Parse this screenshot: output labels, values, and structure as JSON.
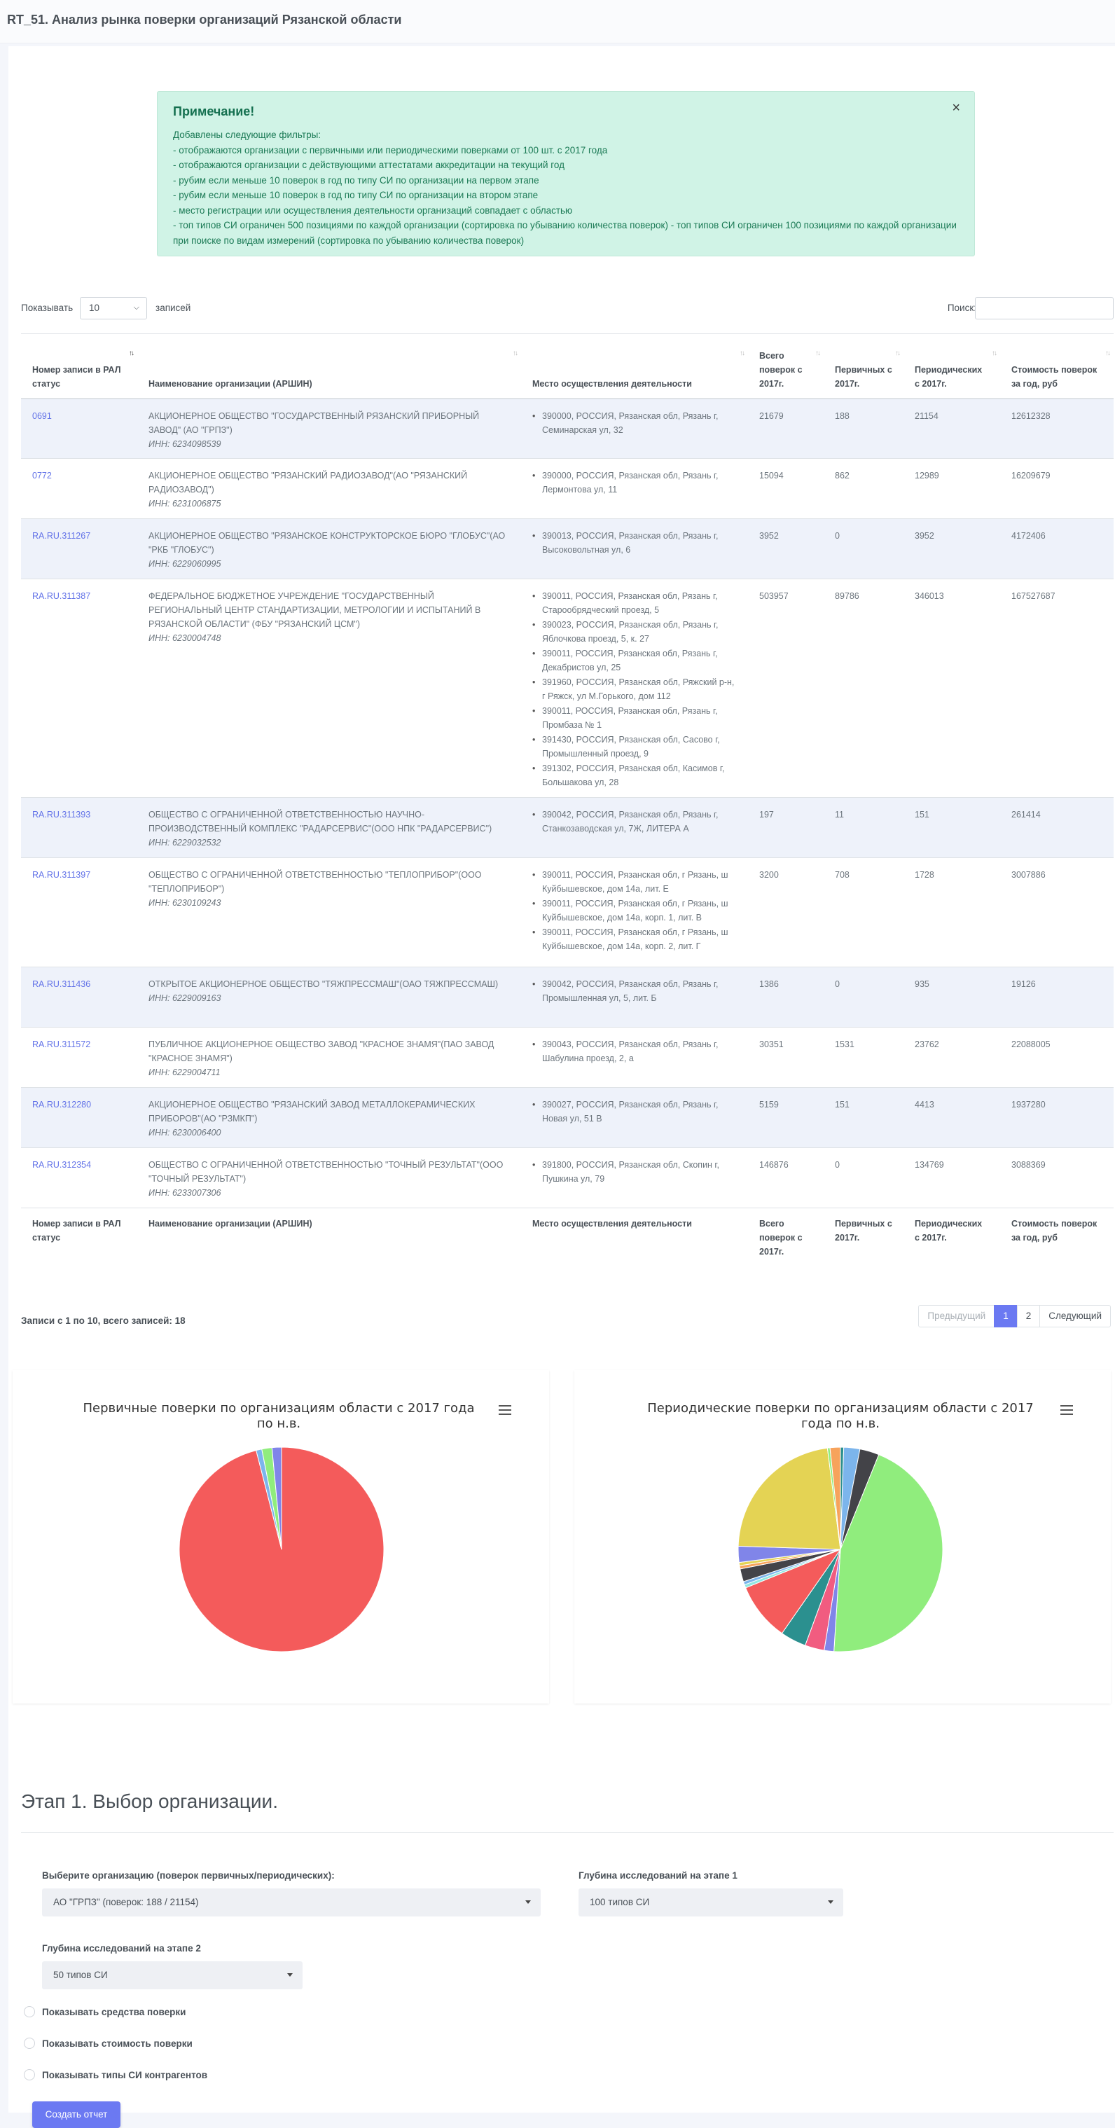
{
  "page_title": "RT_51. Анализ рынка поверки организаций Рязанской области",
  "note": {
    "title": "Примечание!",
    "close": "×",
    "lines": [
      "Добавлены следующие фильтры:",
      "- отображаются организации с первичными или периодическими поверками от 100 шт. с 2017 года",
      "- отображаются организации с действующими аттестатами аккредитации на текущий год",
      "- рубим если меньше 10 поверок в год по типу СИ по организации на первом этапе",
      "- рубим если меньше 10 поверок в год по типу СИ по организации на втором этапе",
      "- место регистрации или осуществления деятельности организаций совпадает с областью",
      "- топ типов СИ ограничен 500 позициями по каждой организации (сортировка по убыванию количества поверок) - топ типов СИ ограничен 100 позициями по каждой организации при поиске по видам измерений (сортировка по убыванию количества поверок)"
    ]
  },
  "table_controls": {
    "show_label": "Показывать",
    "page_length": "10",
    "records_label": "записей",
    "search_label": "Поиск:"
  },
  "columns": [
    "Номер записи в РАЛ статус",
    "Наименование организации (АРШИН)",
    "Место осуществления деятельности",
    "Всего поверок с 2017г.",
    "Первичных с 2017г.",
    "Периодических с 2017г.",
    "Стоимость поверок за год, руб"
  ],
  "footer_columns": [
    "Номер записи в РАЛ статус",
    "Наименование организации (АРШИН)",
    "Место осуществления деятельности",
    "Всего поверок с 2017г.",
    "Первичных с 2017г.",
    "Периодических с 2017г.",
    "Стоимость поверок за год, руб"
  ],
  "rows": [
    {
      "id": "0691",
      "name": "АКЦИОНЕРНОЕ ОБЩЕСТВО \"ГОСУДАРСТВЕННЫЙ РЯЗАНСКИЙ ПРИБОРНЫЙ ЗАВОД\" (АО \"ГРПЗ\")",
      "inn": "ИНН: 6234098539",
      "addresses": [
        "390000, РОССИЯ, Рязанская обл, Рязань г, Семинарская ул, 32"
      ],
      "total": "21679",
      "primary": "188",
      "periodic": "21154",
      "cost": "12612328"
    },
    {
      "id": "0772",
      "name": "АКЦИОНЕРНОЕ ОБЩЕСТВО \"РЯЗАНСКИЙ РАДИОЗАВОД\"(АО \"РЯЗАНСКИЙ РАДИОЗАВОД\")",
      "inn": "ИНН: 6231006875",
      "addresses": [
        "390000, РОССИЯ, Рязанская обл, Рязань г, Лермонтова ул, 11"
      ],
      "total": "15094",
      "primary": "862",
      "periodic": "12989",
      "cost": "16209679"
    },
    {
      "id": "RA.RU.311267",
      "name": "АКЦИОНЕРНОЕ ОБЩЕСТВО \"РЯЗАНСКОЕ КОНСТРУКТОРСКОЕ БЮРО \"ГЛОБУС\"(АО \"РКБ \"ГЛОБУС\")",
      "inn": "ИНН: 6229060995",
      "addresses": [
        "390013, РОССИЯ, Рязанская обл, Рязань г, Высоковольтная ул, 6"
      ],
      "total": "3952",
      "primary": "0",
      "periodic": "3952",
      "cost": "4172406"
    },
    {
      "id": "RA.RU.311387",
      "name": "ФЕДЕРАЛЬНОЕ БЮДЖЕТНОЕ УЧРЕЖДЕНИЕ \"ГОСУДАРСТВЕННЫЙ РЕГИОНАЛЬНЫЙ ЦЕНТР СТАНДАРТИЗАЦИИ, МЕТРОЛОГИИ И ИСПЫТАНИЙ В РЯЗАНСКОЙ ОБЛАСТИ\" (ФБУ \"РЯЗАНСКИЙ ЦСМ\")",
      "inn": "ИНН: 6230004748",
      "addresses": [
        "390011, РОССИЯ, Рязанская обл, Рязань г, Старообрядческий проезд, 5",
        "390023, РОССИЯ, Рязанская обл, Рязань г, Яблочкова проезд, 5, к. 27",
        "390011, РОССИЯ, Рязанская обл, Рязань г, Декабристов ул, 25",
        "391960, РОССИЯ, Рязанская обл, Ряжский р-н, г Ряжск, ул М.Горького, дом 112",
        "390011, РОССИЯ, Рязанская обл, Рязань г, Промбаза № 1",
        "391430, РОССИЯ, Рязанская обл, Сасово г, Промышленный проезд, 9",
        "391302, РОССИЯ, Рязанская обл, Касимов г, Большакова ул, 28"
      ],
      "total": "503957",
      "primary": "89786",
      "periodic": "346013",
      "cost": "167527687"
    },
    {
      "id": "RA.RU.311393",
      "name": "ОБЩЕСТВО С ОГРАНИЧЕННОЙ ОТВЕТСТВЕННОСТЬЮ НАУЧНО-ПРОИЗВОДСТВЕННЫЙ КОМПЛЕКС \"РАДАРСЕРВИС\"(ООО НПК \"РАДАРСЕРВИС\")",
      "inn": "ИНН: 6229032532",
      "addresses": [
        "390042, РОССИЯ, Рязанская обл, Рязань г, Станкозаводская ул, 7Ж, ЛИТЕРА А"
      ],
      "total": "197",
      "primary": "11",
      "periodic": "151",
      "cost": "261414"
    },
    {
      "id": "RA.RU.311397",
      "name": "ОБЩЕСТВО С ОГРАНИЧЕННОЙ ОТВЕТСТВЕННОСТЬЮ \"ТЕПЛОПРИБОР\"(ООО \"ТЕПЛОПРИБОР\")",
      "inn": "ИНН: 6230109243",
      "addresses": [
        "390011, РОССИЯ, Рязанская обл, г Рязань, ш Куйбышевское, дом 14а, лит. Е",
        "390011, РОССИЯ, Рязанская обл, г Рязань, ш Куйбышевское, дом 14а, корп. 1, лит. В",
        "390011, РОССИЯ, Рязанская обл, г Рязань, ш Куйбышевское, дом 14а, корп. 2, лит. Г"
      ],
      "total": "3200",
      "primary": "708",
      "periodic": "1728",
      "cost": "3007886"
    },
    {
      "id": "RA.RU.311436",
      "name": "ОТКРЫТОЕ АКЦИОНЕРНОЕ ОБЩЕСТВО \"ТЯЖПРЕССМАШ\"(ОАО ТЯЖПРЕССМАШ)",
      "inn": "ИНН: 6229009163",
      "addresses": [
        "390042, РОССИЯ, Рязанская обл, Рязань г, Промышленная ул, 5, лит. Б"
      ],
      "total": "1386",
      "primary": "0",
      "periodic": "935",
      "cost": "19126"
    },
    {
      "id": "RA.RU.311572",
      "name": "ПУБЛИЧНОЕ АКЦИОНЕРНОЕ ОБЩЕСТВО ЗАВОД \"КРАСНОЕ ЗНАМЯ\"(ПАО ЗАВОД \"КРАСНОЕ ЗНАМЯ\")",
      "inn": "ИНН: 6229004711",
      "addresses": [
        "390043, РОССИЯ, Рязанская обл, Рязань г, Шабулина проезд, 2, а"
      ],
      "total": "30351",
      "primary": "1531",
      "periodic": "23762",
      "cost": "22088005"
    },
    {
      "id": "RA.RU.312280",
      "name": "АКЦИОНЕРНОЕ ОБЩЕСТВО \"РЯЗАНСКИЙ ЗАВОД МЕТАЛЛОКЕРАМИЧЕСКИХ ПРИБОРОВ\"(АО \"РЗМКП\")",
      "inn": "ИНН: 6230006400",
      "addresses": [
        "390027, РОССИЯ, Рязанская обл, Рязань г, Новая ул, 51 В"
      ],
      "total": "5159",
      "primary": "151",
      "periodic": "4413",
      "cost": "1937280"
    },
    {
      "id": "RA.RU.312354",
      "name": "ОБЩЕСТВО С ОГРАНИЧЕННОЙ ОТВЕТСТВЕННОСТЬЮ \"ТОЧНЫЙ РЕЗУЛЬТАТ\"(ООО \"ТОЧНЫЙ РЕЗУЛЬТАТ\")",
      "inn": "ИНН: 6233007306",
      "addresses": [
        "391800, РОССИЯ, Рязанская обл, Скопин г, Пушкина ул, 79"
      ],
      "total": "146876",
      "primary": "0",
      "periodic": "134769",
      "cost": "3088369"
    }
  ],
  "table_info": "Записи с 1 по 10, всего записей: 18",
  "pagination": {
    "prev": "Предыдущий",
    "pages": [
      "1",
      "2"
    ],
    "next": "Следующий"
  },
  "chart_data": [
    {
      "type": "pie",
      "title": "Первичные поверки по организациям области с 2017 года по н.в.",
      "slices": [
        {
          "value": 0.96,
          "color": "#f45b5b"
        },
        {
          "value": 0.009,
          "color": "#7cb5ec"
        },
        {
          "value": 0.016,
          "color": "#90ed7d"
        },
        {
          "value": 0.015,
          "color": "#8085e9"
        }
      ]
    },
    {
      "type": "pie",
      "title": "Периодические поверки по организациям области с 2017 года по н.в.",
      "slices": [
        {
          "value": 0.005,
          "color": "#2b908f"
        },
        {
          "value": 0.025,
          "color": "#7cb5ec"
        },
        {
          "value": 0.03,
          "color": "#434348"
        },
        {
          "value": 0.44,
          "color": "#90ed7d"
        },
        {
          "value": 0.015,
          "color": "#8085e9"
        },
        {
          "value": 0.03,
          "color": "#f15c80"
        },
        {
          "value": 0.04,
          "color": "#2b908f"
        },
        {
          "value": 0.09,
          "color": "#f45b5b"
        },
        {
          "value": 0.005,
          "color": "#91e8e1"
        },
        {
          "value": 0.005,
          "color": "#7cb5ec"
        },
        {
          "value": 0.02,
          "color": "#434348"
        },
        {
          "value": 0.005,
          "color": "#f7a35c"
        },
        {
          "value": 0.005,
          "color": "#e4d354"
        },
        {
          "value": 0.025,
          "color": "#8085e9"
        },
        {
          "value": 0.22,
          "color": "#e4d354"
        },
        {
          "value": 0.004,
          "color": "#90ed7d"
        },
        {
          "value": 0.016,
          "color": "#f7a35c"
        }
      ]
    }
  ],
  "stage1": {
    "title": "Этап 1. Выбор организации.",
    "org_label": "Выберите организацию (поверок первичных/периодических):",
    "org_value": "АО \"ГРПЗ\" (поверок: 188 / 21154)",
    "depth1_label": "Глубина исследований на этапе 1",
    "depth1_value": "100 типов СИ",
    "depth2_label": "Глубина исследований на этапе 2",
    "depth2_value": "50 типов СИ",
    "checkboxes": [
      "Показывать средства поверки",
      "Показывать стоимость поверки",
      "Показывать типы СИ контрагентов"
    ],
    "button": "Создать отчет"
  }
}
